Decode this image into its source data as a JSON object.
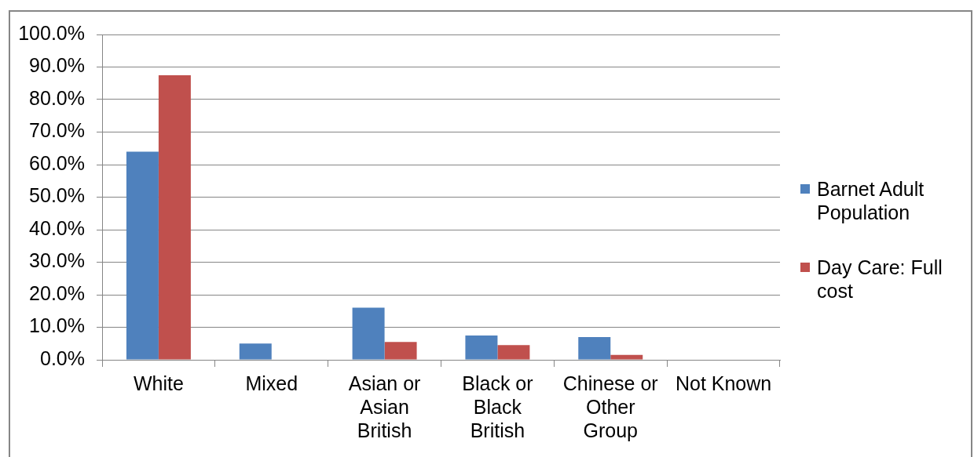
{
  "chart_data": {
    "type": "bar",
    "categories": [
      "White",
      "Mixed",
      "Asian or Asian British",
      "Black or Black British",
      "Chinese or Other Group",
      "Not Known"
    ],
    "series": [
      {
        "name": "Barnet Adult Population",
        "color": "#4f81bd",
        "values": [
          64,
          5,
          16,
          7.5,
          7,
          0
        ]
      },
      {
        "name": "Day Care: Full cost",
        "color": "#c0504d",
        "values": [
          87.5,
          0,
          5.5,
          4.5,
          1.5,
          0
        ]
      }
    ],
    "ylim": [
      0,
      100
    ],
    "yticks": [
      {
        "value": 0,
        "label": "0.0%"
      },
      {
        "value": 10,
        "label": "10.0%"
      },
      {
        "value": 20,
        "label": "20.0%"
      },
      {
        "value": 30,
        "label": "30.0%"
      },
      {
        "value": 40,
        "label": "40.0%"
      },
      {
        "value": 50,
        "label": "50.0%"
      },
      {
        "value": 60,
        "label": "60.0%"
      },
      {
        "value": 70,
        "label": "70.0%"
      },
      {
        "value": 80,
        "label": "80.0%"
      },
      {
        "value": 90,
        "label": "90.0%"
      },
      {
        "value": 100,
        "label": "100.0%"
      }
    ],
    "grid": "y",
    "legend": "right"
  }
}
